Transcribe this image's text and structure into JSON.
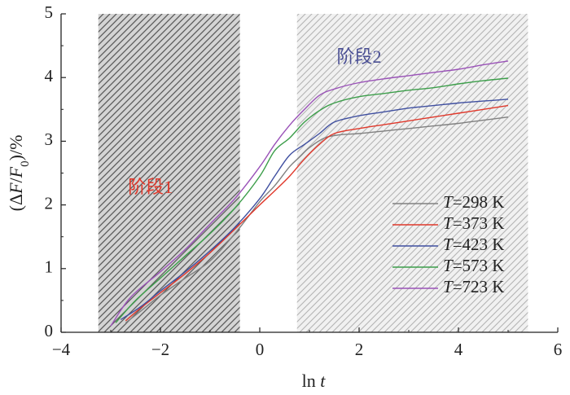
{
  "chart_data": {
    "type": "line",
    "xlabel": {
      "prefix": "ln ",
      "italic": "t"
    },
    "ylabel": "(ΔF/F0)/%",
    "xlim": [
      -4,
      6
    ],
    "ylim": [
      0,
      5
    ],
    "xticks": [
      "−4",
      "−2",
      "0",
      "2",
      "4",
      "6"
    ],
    "yticks": [
      "0",
      "1",
      "2",
      "3",
      "4",
      "5"
    ],
    "grid": false,
    "legend_position": "lower-right",
    "regions": [
      {
        "label": "阶段1",
        "x_range": [
          -3.25,
          -0.4
        ],
        "color": "#e0382b",
        "pattern": "dark-hatch"
      },
      {
        "label": "阶段2",
        "x_range": [
          0.75,
          5.4
        ],
        "color": "#4a4f94",
        "pattern": "light-hatch"
      }
    ],
    "series": [
      {
        "name": "T=298 K",
        "name_var": "T",
        "name_rest": "=298 K",
        "color": "#808080",
        "x": [
          -2.7,
          -2.4,
          -2.0,
          -1.5,
          -1.0,
          -0.5,
          0.0,
          0.3,
          0.6,
          0.8,
          1.0,
          1.3,
          1.6,
          2.0,
          2.5,
          3.0,
          3.5,
          4.0,
          4.5,
          5.0
        ],
        "y": [
          0.15,
          0.33,
          0.58,
          0.85,
          1.12,
          1.55,
          2.05,
          2.3,
          2.6,
          2.75,
          2.9,
          3.05,
          3.1,
          3.12,
          3.16,
          3.2,
          3.24,
          3.28,
          3.33,
          3.38
        ]
      },
      {
        "name": "T=373 K",
        "name_var": "T",
        "name_rest": "=373 K",
        "color": "#e0382b",
        "x": [
          -2.7,
          -2.4,
          -2.0,
          -1.5,
          -1.0,
          -0.5,
          0.0,
          0.3,
          0.6,
          0.9,
          1.2,
          1.5,
          2.0,
          2.5,
          3.0,
          3.5,
          4.0,
          4.5,
          5.0
        ],
        "y": [
          0.18,
          0.38,
          0.62,
          0.92,
          1.25,
          1.62,
          2.0,
          2.22,
          2.45,
          2.72,
          2.95,
          3.12,
          3.2,
          3.26,
          3.32,
          3.38,
          3.44,
          3.5,
          3.56
        ]
      },
      {
        "name": "T=423 K",
        "name_var": "T",
        "name_rest": "=423 K",
        "color": "#3f4fa0",
        "x": [
          -2.8,
          -2.4,
          -2.0,
          -1.5,
          -1.0,
          -0.5,
          0.0,
          0.3,
          0.6,
          0.9,
          1.2,
          1.5,
          2.0,
          2.5,
          3.0,
          3.5,
          4.0,
          4.5,
          5.0
        ],
        "y": [
          0.2,
          0.4,
          0.65,
          0.95,
          1.28,
          1.65,
          2.1,
          2.45,
          2.78,
          2.95,
          3.12,
          3.3,
          3.4,
          3.46,
          3.52,
          3.56,
          3.6,
          3.63,
          3.66
        ]
      },
      {
        "name": "T=573 K",
        "name_var": "T",
        "name_rest": "=573 K",
        "color": "#3c9e4a",
        "x": [
          -2.9,
          -2.5,
          -2.0,
          -1.5,
          -1.0,
          -0.5,
          0.0,
          0.3,
          0.6,
          0.9,
          1.2,
          1.5,
          2.0,
          2.5,
          3.0,
          3.5,
          4.0,
          4.5,
          5.0
        ],
        "y": [
          0.15,
          0.5,
          0.85,
          1.2,
          1.55,
          1.95,
          2.45,
          2.85,
          3.05,
          3.3,
          3.48,
          3.6,
          3.7,
          3.75,
          3.8,
          3.84,
          3.9,
          3.95,
          3.99
        ]
      },
      {
        "name": "T=723 K",
        "name_var": "T",
        "name_rest": "=723 K",
        "color": "#9a52b8",
        "x": [
          -3.0,
          -2.6,
          -2.0,
          -1.5,
          -1.0,
          -0.5,
          0.0,
          0.3,
          0.6,
          0.9,
          1.2,
          1.5,
          2.0,
          2.5,
          3.0,
          3.5,
          4.0,
          4.5,
          5.0
        ],
        "y": [
          0.1,
          0.55,
          0.95,
          1.3,
          1.7,
          2.1,
          2.6,
          2.95,
          3.25,
          3.5,
          3.72,
          3.82,
          3.92,
          3.98,
          4.03,
          4.08,
          4.13,
          4.2,
          4.26
        ]
      }
    ]
  }
}
